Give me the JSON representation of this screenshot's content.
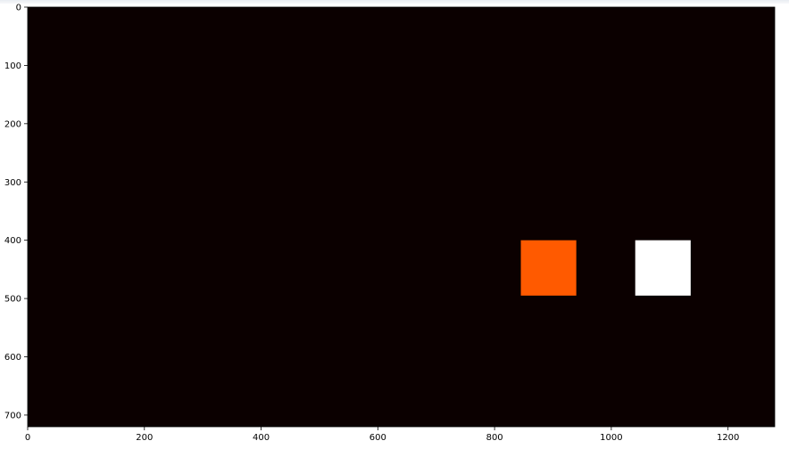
{
  "chart_data": {
    "type": "heatmap",
    "title": "",
    "xlabel": "",
    "ylabel": "",
    "xlim": [
      0,
      1280
    ],
    "ylim": [
      720,
      0
    ],
    "x_ticks": [
      0,
      200,
      400,
      600,
      800,
      1000,
      1200
    ],
    "y_ticks": [
      0,
      100,
      200,
      300,
      400,
      500,
      600,
      700
    ],
    "grid": false,
    "background_color": "#0b0000",
    "regions": [
      {
        "x0": 845,
        "x1": 940,
        "y0": 400,
        "y1": 495,
        "color": "#ff5a00"
      },
      {
        "x0": 1041,
        "x1": 1136,
        "y0": 400,
        "y1": 495,
        "color": "#ffffff"
      }
    ]
  }
}
